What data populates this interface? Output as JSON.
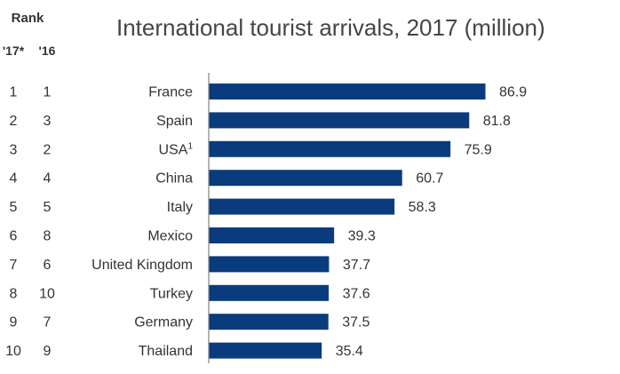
{
  "rank_table": {
    "header": "Rank",
    "col_2017": "'17*",
    "col_2016": "'16"
  },
  "chart_data": {
    "type": "bar",
    "orientation": "horizontal",
    "title": "International tourist arrivals, 2017 (million)",
    "categories": [
      "France",
      "Spain",
      "USA",
      "China",
      "Italy",
      "Mexico",
      "United Kingdom",
      "Turkey",
      "Germany",
      "Thailand"
    ],
    "category_superscripts": [
      "",
      "",
      "1",
      "",
      "",
      "",
      "",
      "",
      "",
      ""
    ],
    "values": [
      86.9,
      81.8,
      75.9,
      60.7,
      58.3,
      39.3,
      37.7,
      37.6,
      37.5,
      35.4
    ],
    "value_labels": [
      "86.9",
      "81.8",
      "75.9",
      "60.7",
      "58.3",
      "39.3",
      "37.7",
      "37.6",
      "37.5",
      "35.4"
    ],
    "rank_2017": [
      "1",
      "2",
      "3",
      "4",
      "5",
      "6",
      "7",
      "8",
      "9",
      "10"
    ],
    "rank_2016": [
      "1",
      "3",
      "2",
      "4",
      "5",
      "8",
      "6",
      "10",
      "7",
      "9"
    ],
    "xlim": [
      0,
      100
    ],
    "bar_color": "#0a3b7c",
    "axis_color": "#9a9a9a",
    "grid": false,
    "legend": false
  }
}
